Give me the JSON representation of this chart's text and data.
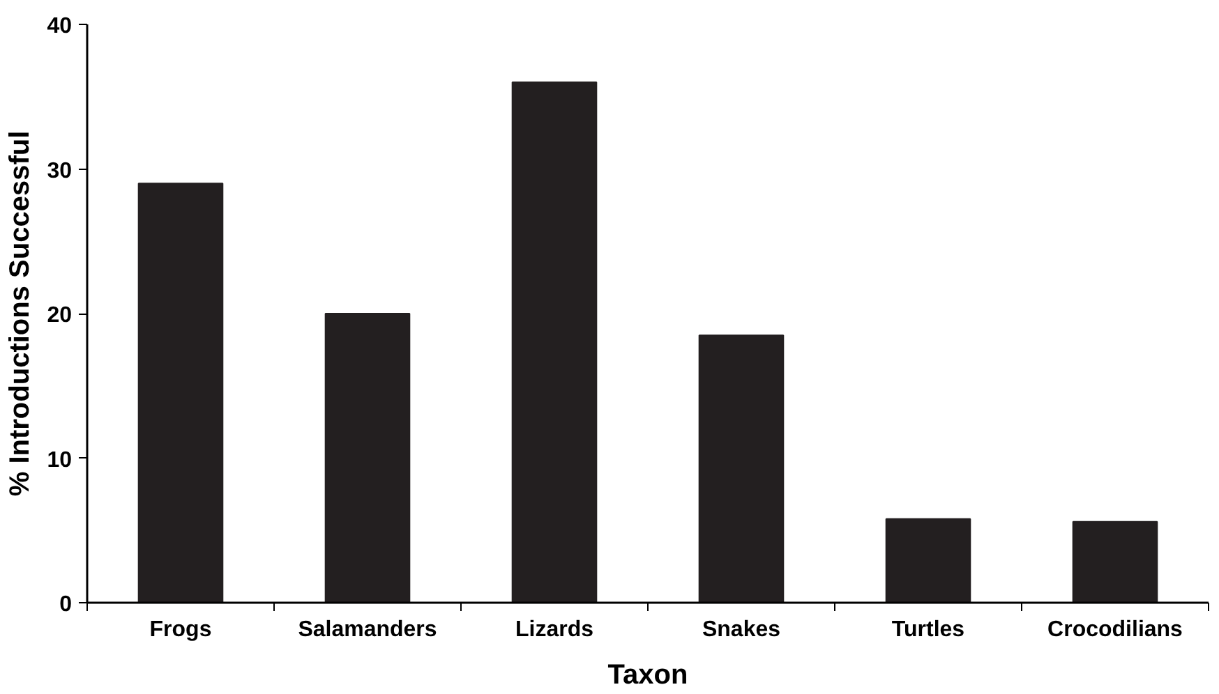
{
  "chart_data": {
    "type": "bar",
    "xlabel": "Taxon",
    "ylabel": "% Introductions Successful",
    "categories": [
      "Frogs",
      "Salamanders",
      "Lizards",
      "Snakes",
      "Turtles",
      "Crocodilians"
    ],
    "values": [
      29,
      20,
      36,
      18.5,
      5.8,
      5.6
    ],
    "color": "#231f20",
    "ylim": [
      0,
      40
    ],
    "yticks": [
      0,
      10,
      20,
      30,
      40
    ],
    "grid": false
  }
}
